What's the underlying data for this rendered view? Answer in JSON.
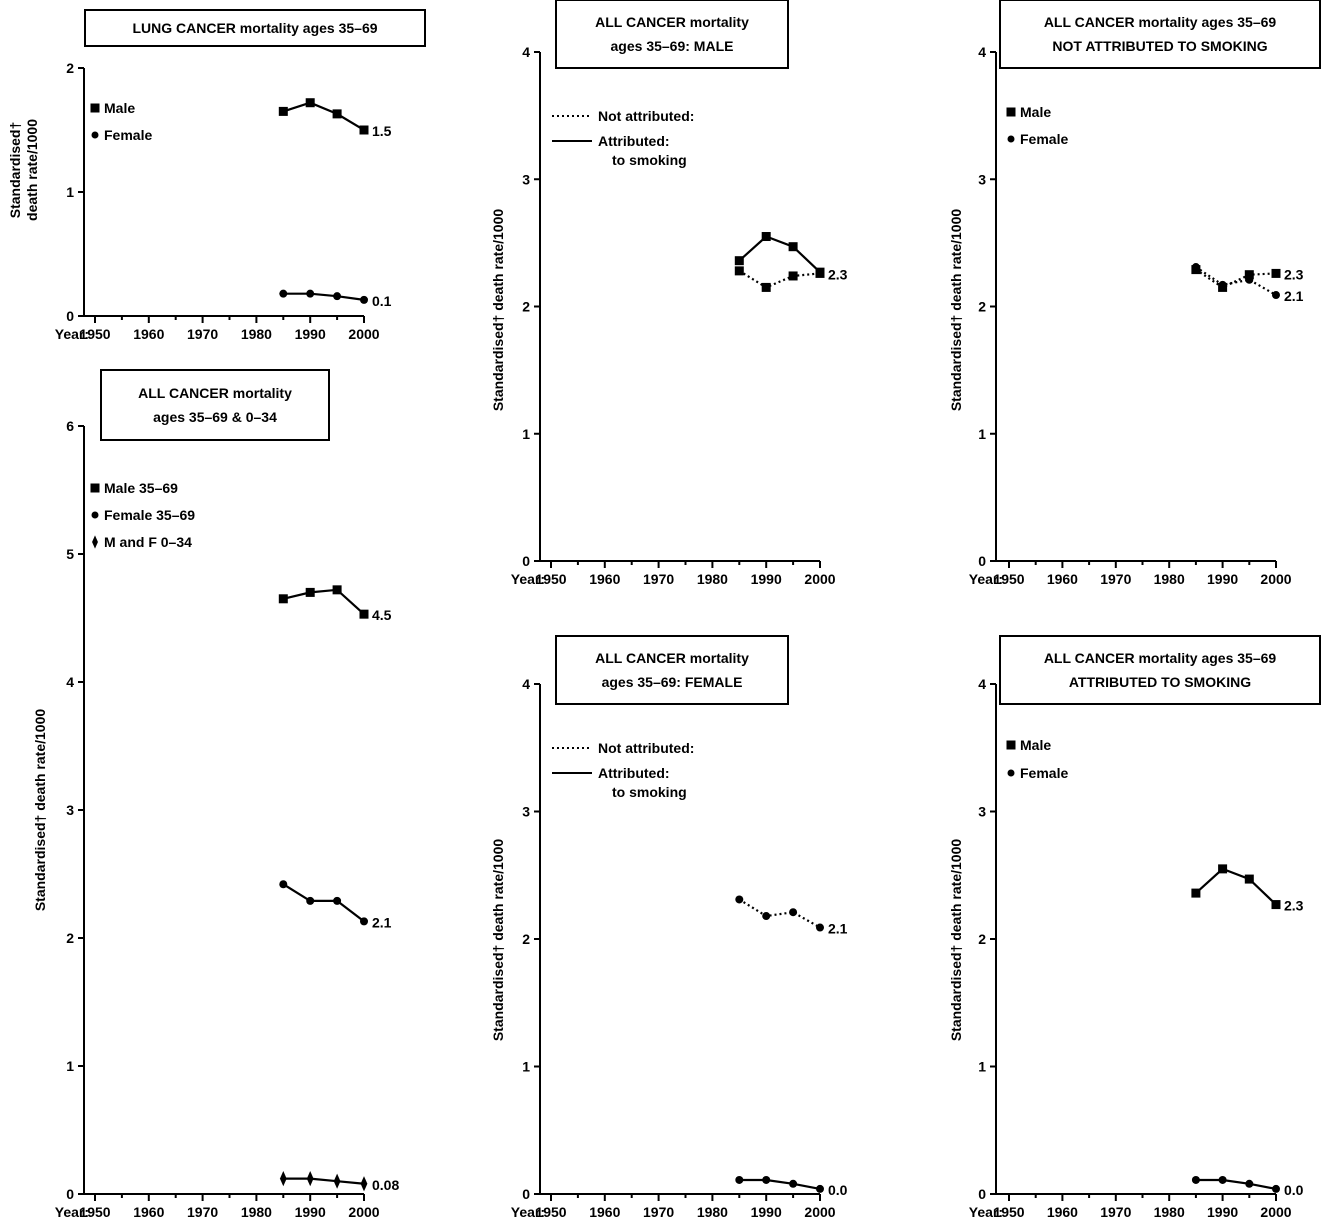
{
  "axis_x_prefix": "Year:",
  "chart_data": [
    {
      "type": "line",
      "title_lines": [
        "LUNG CANCER mortality ages 35–69"
      ],
      "ylabel_lines": [
        "Standardised†",
        "death rate/1000"
      ],
      "xticks": [
        "1950",
        "1960",
        "1970",
        "1980",
        "1990",
        "2000"
      ],
      "yticks": [
        "0",
        "1",
        "2"
      ],
      "xlim": [
        1950,
        2000
      ],
      "ylim": [
        0,
        2
      ],
      "legend": [
        {
          "marker": "square",
          "label": "Male"
        },
        {
          "marker": "circle",
          "label": "Female"
        }
      ],
      "series": [
        {
          "name": "Male",
          "marker": "square",
          "style": "solid",
          "x": [
            1985,
            1990,
            1995,
            2000
          ],
          "values": [
            1.65,
            1.72,
            1.63,
            1.5
          ],
          "end_label": "1.5"
        },
        {
          "name": "Female",
          "marker": "circle",
          "style": "solid",
          "x": [
            1985,
            1990,
            1995,
            2000
          ],
          "values": [
            0.18,
            0.18,
            0.16,
            0.13
          ],
          "end_label": "0.1"
        }
      ]
    },
    {
      "type": "line",
      "title_lines": [
        "ALL CANCER mortality",
        "ages 35–69 & 0–34"
      ],
      "ylabel_lines": [
        "Standardised† death rate/1000"
      ],
      "xticks": [
        "1950",
        "1960",
        "1970",
        "1980",
        "1990",
        "2000"
      ],
      "yticks": [
        "0",
        "1",
        "2",
        "3",
        "4",
        "5",
        "6"
      ],
      "xlim": [
        1950,
        2000
      ],
      "ylim": [
        0,
        6
      ],
      "legend": [
        {
          "marker": "square",
          "label": "Male 35–69"
        },
        {
          "marker": "circle",
          "label": "Female 35–69"
        },
        {
          "marker": "diamond",
          "label": "M and F 0–34"
        }
      ],
      "series": [
        {
          "name": "Male 35–69",
          "marker": "square",
          "style": "solid",
          "x": [
            1985,
            1990,
            1995,
            2000
          ],
          "values": [
            4.65,
            4.7,
            4.72,
            4.53
          ],
          "end_label": "4.5"
        },
        {
          "name": "Female 35–69",
          "marker": "circle",
          "style": "solid",
          "x": [
            1985,
            1990,
            1995,
            2000
          ],
          "values": [
            2.42,
            2.29,
            2.29,
            2.13
          ],
          "end_label": "2.1"
        },
        {
          "name": "M and F 0–34",
          "marker": "diamond",
          "style": "solid",
          "x": [
            1985,
            1990,
            1995,
            2000
          ],
          "values": [
            0.12,
            0.12,
            0.1,
            0.08
          ],
          "end_label": "0.08"
        }
      ]
    },
    {
      "type": "line",
      "title_lines": [
        "ALL CANCER mortality",
        "ages 35–69:  MALE"
      ],
      "ylabel_lines": [
        "Standardised† death rate/1000"
      ],
      "xticks": [
        "1950",
        "1960",
        "1970",
        "1980",
        "1990",
        "2000"
      ],
      "yticks": [
        "0",
        "1",
        "2",
        "3",
        "4"
      ],
      "xlim": [
        1950,
        2000
      ],
      "ylim": [
        0,
        4
      ],
      "legend": [
        {
          "line": "dotted",
          "label": "Not attributed:"
        },
        {
          "line": "solid",
          "label": "Attributed:",
          "sub": "to smoking"
        }
      ],
      "series": [
        {
          "name": "Not attributed:",
          "marker": "square",
          "style": "dotted",
          "x": [
            1985,
            1990,
            1995,
            2000
          ],
          "values": [
            2.28,
            2.15,
            2.24,
            2.26
          ],
          "end_label": "2.3"
        },
        {
          "name": "Attributed:",
          "marker": "square",
          "style": "solid",
          "x": [
            1985,
            1990,
            1995,
            2000
          ],
          "values": [
            2.36,
            2.55,
            2.47,
            2.27
          ],
          "end_label": ""
        }
      ]
    },
    {
      "type": "line",
      "title_lines": [
        "ALL CANCER mortality",
        "ages 35–69:  FEMALE"
      ],
      "ylabel_lines": [
        "Standardised† death rate/1000"
      ],
      "xticks": [
        "1950",
        "1960",
        "1970",
        "1980",
        "1990",
        "2000"
      ],
      "yticks": [
        "0",
        "1",
        "2",
        "3",
        "4"
      ],
      "xlim": [
        1950,
        2000
      ],
      "ylim": [
        0,
        4
      ],
      "legend": [
        {
          "line": "dotted",
          "label": "Not attributed:"
        },
        {
          "line": "solid",
          "label": "Attributed:",
          "sub": "to smoking"
        }
      ],
      "series": [
        {
          "name": "Not attributed:",
          "marker": "circle",
          "style": "dotted",
          "x": [
            1985,
            1990,
            1995,
            2000
          ],
          "values": [
            2.31,
            2.18,
            2.21,
            2.09
          ],
          "end_label": "2.1"
        },
        {
          "name": "Attributed:",
          "marker": "circle",
          "style": "solid",
          "x": [
            1985,
            1990,
            1995,
            2000
          ],
          "values": [
            0.11,
            0.11,
            0.08,
            0.04
          ],
          "end_label": "0.0"
        }
      ]
    },
    {
      "type": "line",
      "title_lines": [
        "ALL CANCER mortality ages 35–69",
        "NOT ATTRIBUTED TO SMOKING"
      ],
      "ylabel_lines": [
        "Standardised† death rate/1000"
      ],
      "xticks": [
        "1950",
        "1960",
        "1970",
        "1980",
        "1990",
        "2000"
      ],
      "yticks": [
        "0",
        "1",
        "2",
        "3",
        "4"
      ],
      "xlim": [
        1950,
        2000
      ],
      "ylim": [
        0,
        4
      ],
      "legend": [
        {
          "marker": "square",
          "label": "Male"
        },
        {
          "marker": "circle",
          "label": "Female"
        }
      ],
      "series": [
        {
          "name": "Male",
          "marker": "square",
          "style": "dotted",
          "x": [
            1985,
            1990,
            1995,
            2000
          ],
          "values": [
            2.29,
            2.15,
            2.25,
            2.26
          ],
          "end_label": "2.3"
        },
        {
          "name": "Female",
          "marker": "circle",
          "style": "dotted",
          "x": [
            1985,
            1990,
            1995,
            2000
          ],
          "values": [
            2.31,
            2.17,
            2.21,
            2.09
          ],
          "end_label": "2.1"
        }
      ]
    },
    {
      "type": "line",
      "title_lines": [
        "ALL CANCER mortality ages 35–69",
        "ATTRIBUTED TO SMOKING"
      ],
      "ylabel_lines": [
        "Standardised† death rate/1000"
      ],
      "xticks": [
        "1950",
        "1960",
        "1970",
        "1980",
        "1990",
        "2000"
      ],
      "yticks": [
        "0",
        "1",
        "2",
        "3",
        "4"
      ],
      "xlim": [
        1950,
        2000
      ],
      "ylim": [
        0,
        4
      ],
      "legend": [
        {
          "marker": "square",
          "label": "Male"
        },
        {
          "marker": "circle",
          "label": "Female"
        }
      ],
      "series": [
        {
          "name": "Male",
          "marker": "square",
          "style": "solid",
          "x": [
            1985,
            1990,
            1995,
            2000
          ],
          "values": [
            2.36,
            2.55,
            2.47,
            2.27
          ],
          "end_label": "2.3"
        },
        {
          "name": "Female",
          "marker": "circle",
          "style": "solid",
          "x": [
            1985,
            1990,
            1995,
            2000
          ],
          "values": [
            0.11,
            0.11,
            0.08,
            0.04
          ],
          "end_label": "0.0"
        }
      ]
    }
  ]
}
